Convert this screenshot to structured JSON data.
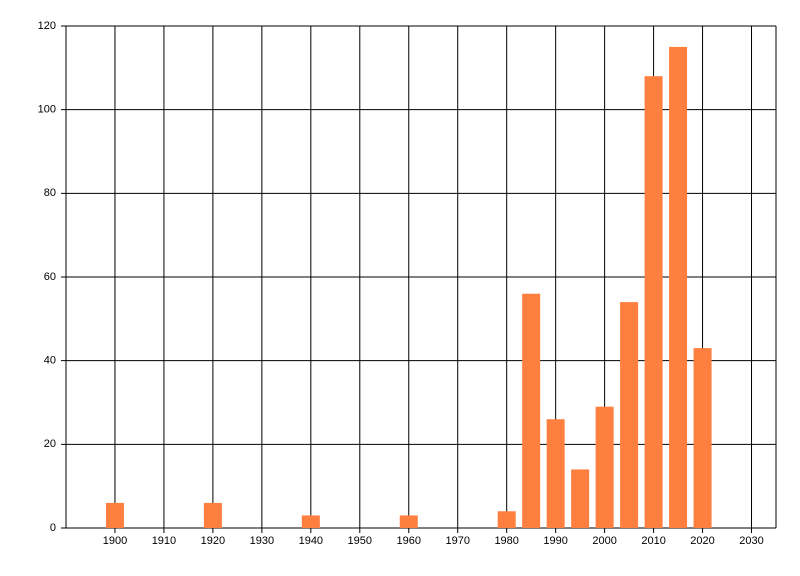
{
  "chart_data": {
    "type": "bar",
    "x": [
      1900,
      1920,
      1940,
      1960,
      1980,
      1985,
      1990,
      1995,
      2000,
      2005,
      2010,
      2015,
      2020
    ],
    "values": [
      6,
      6,
      3,
      3,
      4,
      56,
      26,
      14,
      29,
      54,
      108,
      115,
      43
    ],
    "color": "#ff7f3f",
    "xlim": [
      1890,
      2035
    ],
    "xticks": [
      1900,
      1910,
      1920,
      1930,
      1940,
      1950,
      1960,
      1970,
      1980,
      1990,
      2000,
      2010,
      2020,
      2030
    ],
    "ylim": [
      0,
      120
    ],
    "yticks": [
      0,
      20,
      40,
      60,
      80,
      100,
      120
    ],
    "grid": true
  }
}
